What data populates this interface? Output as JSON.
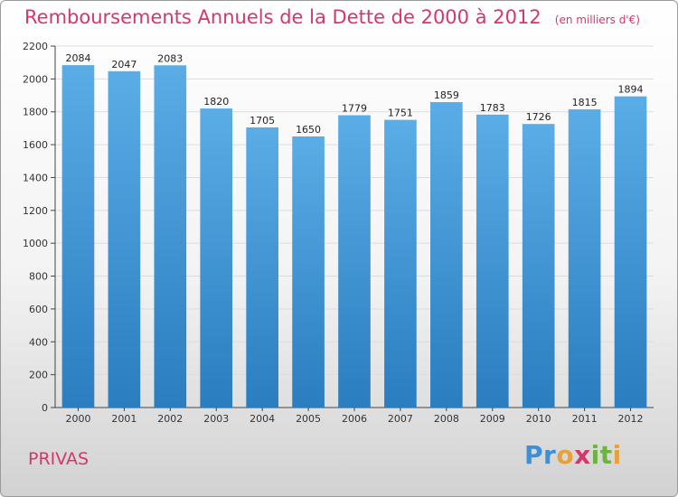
{
  "chart_data": {
    "type": "bar",
    "title": "Remboursements Annuels de la Dette de 2000 à 2012",
    "subtitle": "(en milliers d'€)",
    "categories": [
      "2000",
      "2001",
      "2002",
      "2003",
      "2004",
      "2005",
      "2006",
      "2007",
      "2008",
      "2009",
      "2010",
      "2011",
      "2012"
    ],
    "values": [
      2084,
      2047,
      2083,
      1820,
      1705,
      1650,
      1779,
      1751,
      1859,
      1783,
      1726,
      1815,
      1894
    ],
    "ylim": [
      0,
      2200
    ],
    "yticks": [
      0,
      200,
      400,
      600,
      800,
      1000,
      1200,
      1400,
      1600,
      1800,
      2000,
      2200
    ],
    "grid": true,
    "bar_color_top": "#5aade6",
    "bar_color_bottom": "#2a7dbf"
  },
  "commune": "PRIVAS",
  "logo": {
    "letters": [
      "P",
      "r",
      "o",
      "x",
      "i",
      "t",
      "i"
    ],
    "colors": [
      "#3d8fd6",
      "#3d8fd6",
      "#e8a13a",
      "#d4376b",
      "#6cb33f",
      "#6cb33f",
      "#e8a13a"
    ]
  },
  "colors": {
    "accent": "#d4376b",
    "axis": "#444444",
    "grid": "#dddddd"
  }
}
